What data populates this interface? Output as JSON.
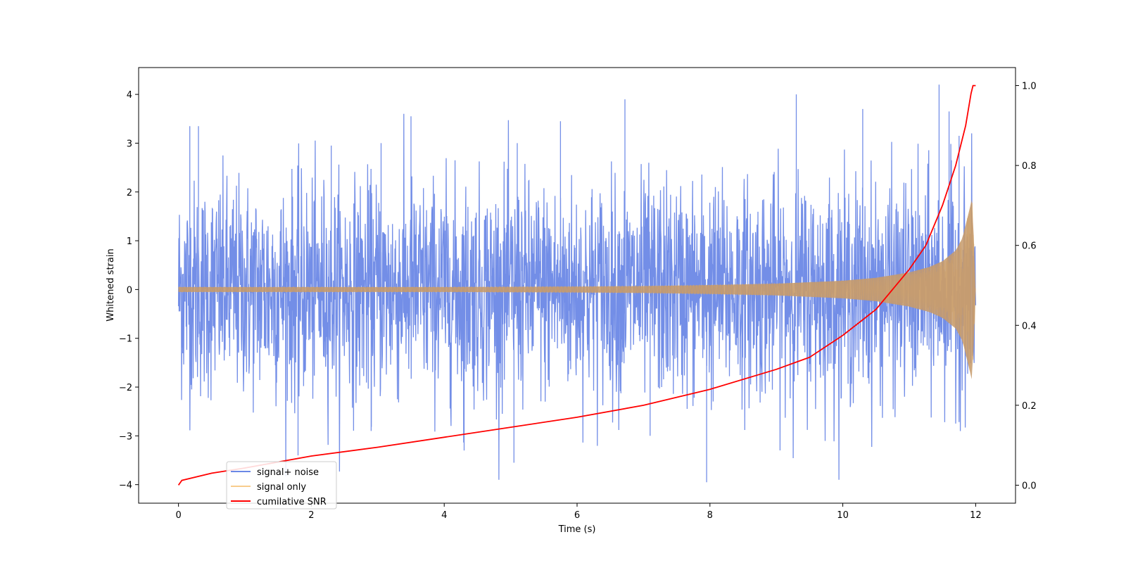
{
  "chart_data": {
    "type": "line",
    "title": "",
    "xlabel": "Time (s)",
    "ylabel": "Whitened strain",
    "y2label": "",
    "xlim": [
      -0.6,
      12.6
    ],
    "ylim": [
      -4.38,
      4.55
    ],
    "y2lim": [
      -0.045,
      1.045
    ],
    "x_ticks": [
      0,
      2,
      4,
      6,
      8,
      10,
      12
    ],
    "y_ticks": [
      -4,
      -3,
      -2,
      -1,
      0,
      1,
      2,
      3,
      4
    ],
    "y2_ticks": [
      0.0,
      0.2,
      0.4,
      0.6,
      0.8,
      1.0
    ],
    "x_tick_labels": [
      "0",
      "2",
      "4",
      "6",
      "8",
      "10",
      "12"
    ],
    "y_tick_labels": [
      "−4",
      "−3",
      "−2",
      "−1",
      "0",
      "1",
      "2",
      "3",
      "4"
    ],
    "y2_tick_labels": [
      "0.0",
      "0.2",
      "0.4",
      "0.6",
      "0.8",
      "1.0"
    ],
    "grid": false,
    "legend_position": "lower-left",
    "series": [
      {
        "name": "signal+ noise",
        "axis": "left",
        "color": "#6b88e6",
        "description_shape": "noise band roughly within -2.2..+2.2 with peaks near +4.2 and -3.9",
        "envelope_x": [
          0,
          2,
          4,
          6,
          8,
          10,
          11,
          11.5,
          11.9,
          12.0
        ],
        "envelope_upper": [
          2.2,
          2.2,
          2.2,
          2.2,
          2.2,
          2.2,
          2.2,
          2.2,
          2.2,
          2.2
        ],
        "envelope_lower": [
          -2.2,
          -2.2,
          -2.2,
          -2.2,
          -2.2,
          -2.2,
          -2.2,
          -2.2,
          -2.2,
          -2.2
        ],
        "peaks_x": [
          0.17,
          0.3,
          1.8,
          2.3,
          2.9,
          3.05,
          3.5,
          4.3,
          5.05,
          5.1,
          5.75,
          6.72,
          7.1,
          7.95,
          9.3,
          10.3,
          11.45,
          11.6,
          11.75
        ],
        "peaks_y": [
          3.35,
          3.35,
          -3.4,
          2.95,
          -2.9,
          3.0,
          3.55,
          -3.3,
          -3.55,
          3.0,
          3.45,
          3.9,
          -3.0,
          -3.95,
          4.0,
          3.7,
          4.2,
          3.65,
          3.15
        ]
      },
      {
        "name": "signal only",
        "axis": "left",
        "color": "#f5b75c",
        "envelope_x": [
          0,
          2,
          4,
          6,
          7,
          8,
          9,
          10,
          10.5,
          11,
          11.3,
          11.5,
          11.7,
          11.8,
          11.9,
          11.95,
          12.0
        ],
        "envelope_amp": [
          0.05,
          0.05,
          0.05,
          0.06,
          0.07,
          0.09,
          0.12,
          0.18,
          0.24,
          0.35,
          0.46,
          0.58,
          0.8,
          1.05,
          1.6,
          1.9,
          0.0
        ]
      },
      {
        "name": "cumilative SNR",
        "axis": "right",
        "color": "#ff0000",
        "x": [
          0,
          0.05,
          0.5,
          1,
          2,
          3,
          4,
          5,
          6,
          7,
          8,
          9,
          9.5,
          10,
          10.5,
          11,
          11.25,
          11.5,
          11.7,
          11.85,
          11.93,
          11.96,
          12.0
        ],
        "values": [
          0.0,
          0.012,
          0.03,
          0.043,
          0.073,
          0.095,
          0.12,
          0.145,
          0.17,
          0.2,
          0.24,
          0.29,
          0.32,
          0.375,
          0.44,
          0.54,
          0.6,
          0.7,
          0.8,
          0.9,
          0.98,
          1.0,
          1.0
        ]
      }
    ]
  }
}
